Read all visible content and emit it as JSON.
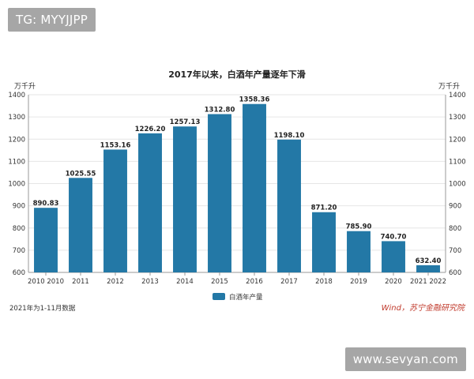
{
  "watermarks": {
    "top": "TG: MYYJJPP",
    "bottom": "www.sevyan.com"
  },
  "footnote": "2021年为1-11月数据",
  "source": "Wind，苏宁金融研究院",
  "colors": {
    "bar": "#2378a6",
    "grid": "#e6e6e6",
    "axis": "#999999",
    "source": "#c0392b"
  },
  "chart_data": {
    "type": "bar",
    "title": "2017年以来，白酒年产量逐年下滑",
    "ylabel_left": "万千升",
    "ylabel_right": "万千升",
    "categories": [
      "2010",
      "2011",
      "2012",
      "2013",
      "2014",
      "2015",
      "2016",
      "2017",
      "2018",
      "2019",
      "2020",
      "2021"
    ],
    "x_ticks": [
      "2010 2010",
      "2011",
      "2012",
      "2013",
      "2014",
      "2015",
      "2016",
      "2017",
      "2018",
      "2019",
      "2020",
      "2021 2022"
    ],
    "series": [
      {
        "name": "白酒年产量",
        "values": [
          890.83,
          1025.55,
          1153.16,
          1226.2,
          1257.13,
          1312.8,
          1358.36,
          1198.1,
          871.2,
          785.9,
          740.7,
          632.4
        ],
        "labels": [
          "890.83",
          "1025.55",
          "1153.16",
          "1226.20",
          "1257.13",
          "1312.80",
          "1358.36",
          "1198.10",
          "871.20",
          "785.90",
          "740.70",
          "632.40"
        ]
      }
    ],
    "ylim": [
      600,
      1400
    ],
    "y_ticks": [
      "600",
      "700",
      "800",
      "900",
      "1000",
      "1100",
      "1200",
      "1300",
      "1400"
    ],
    "grid": true,
    "legend_position": "bottom-center"
  }
}
